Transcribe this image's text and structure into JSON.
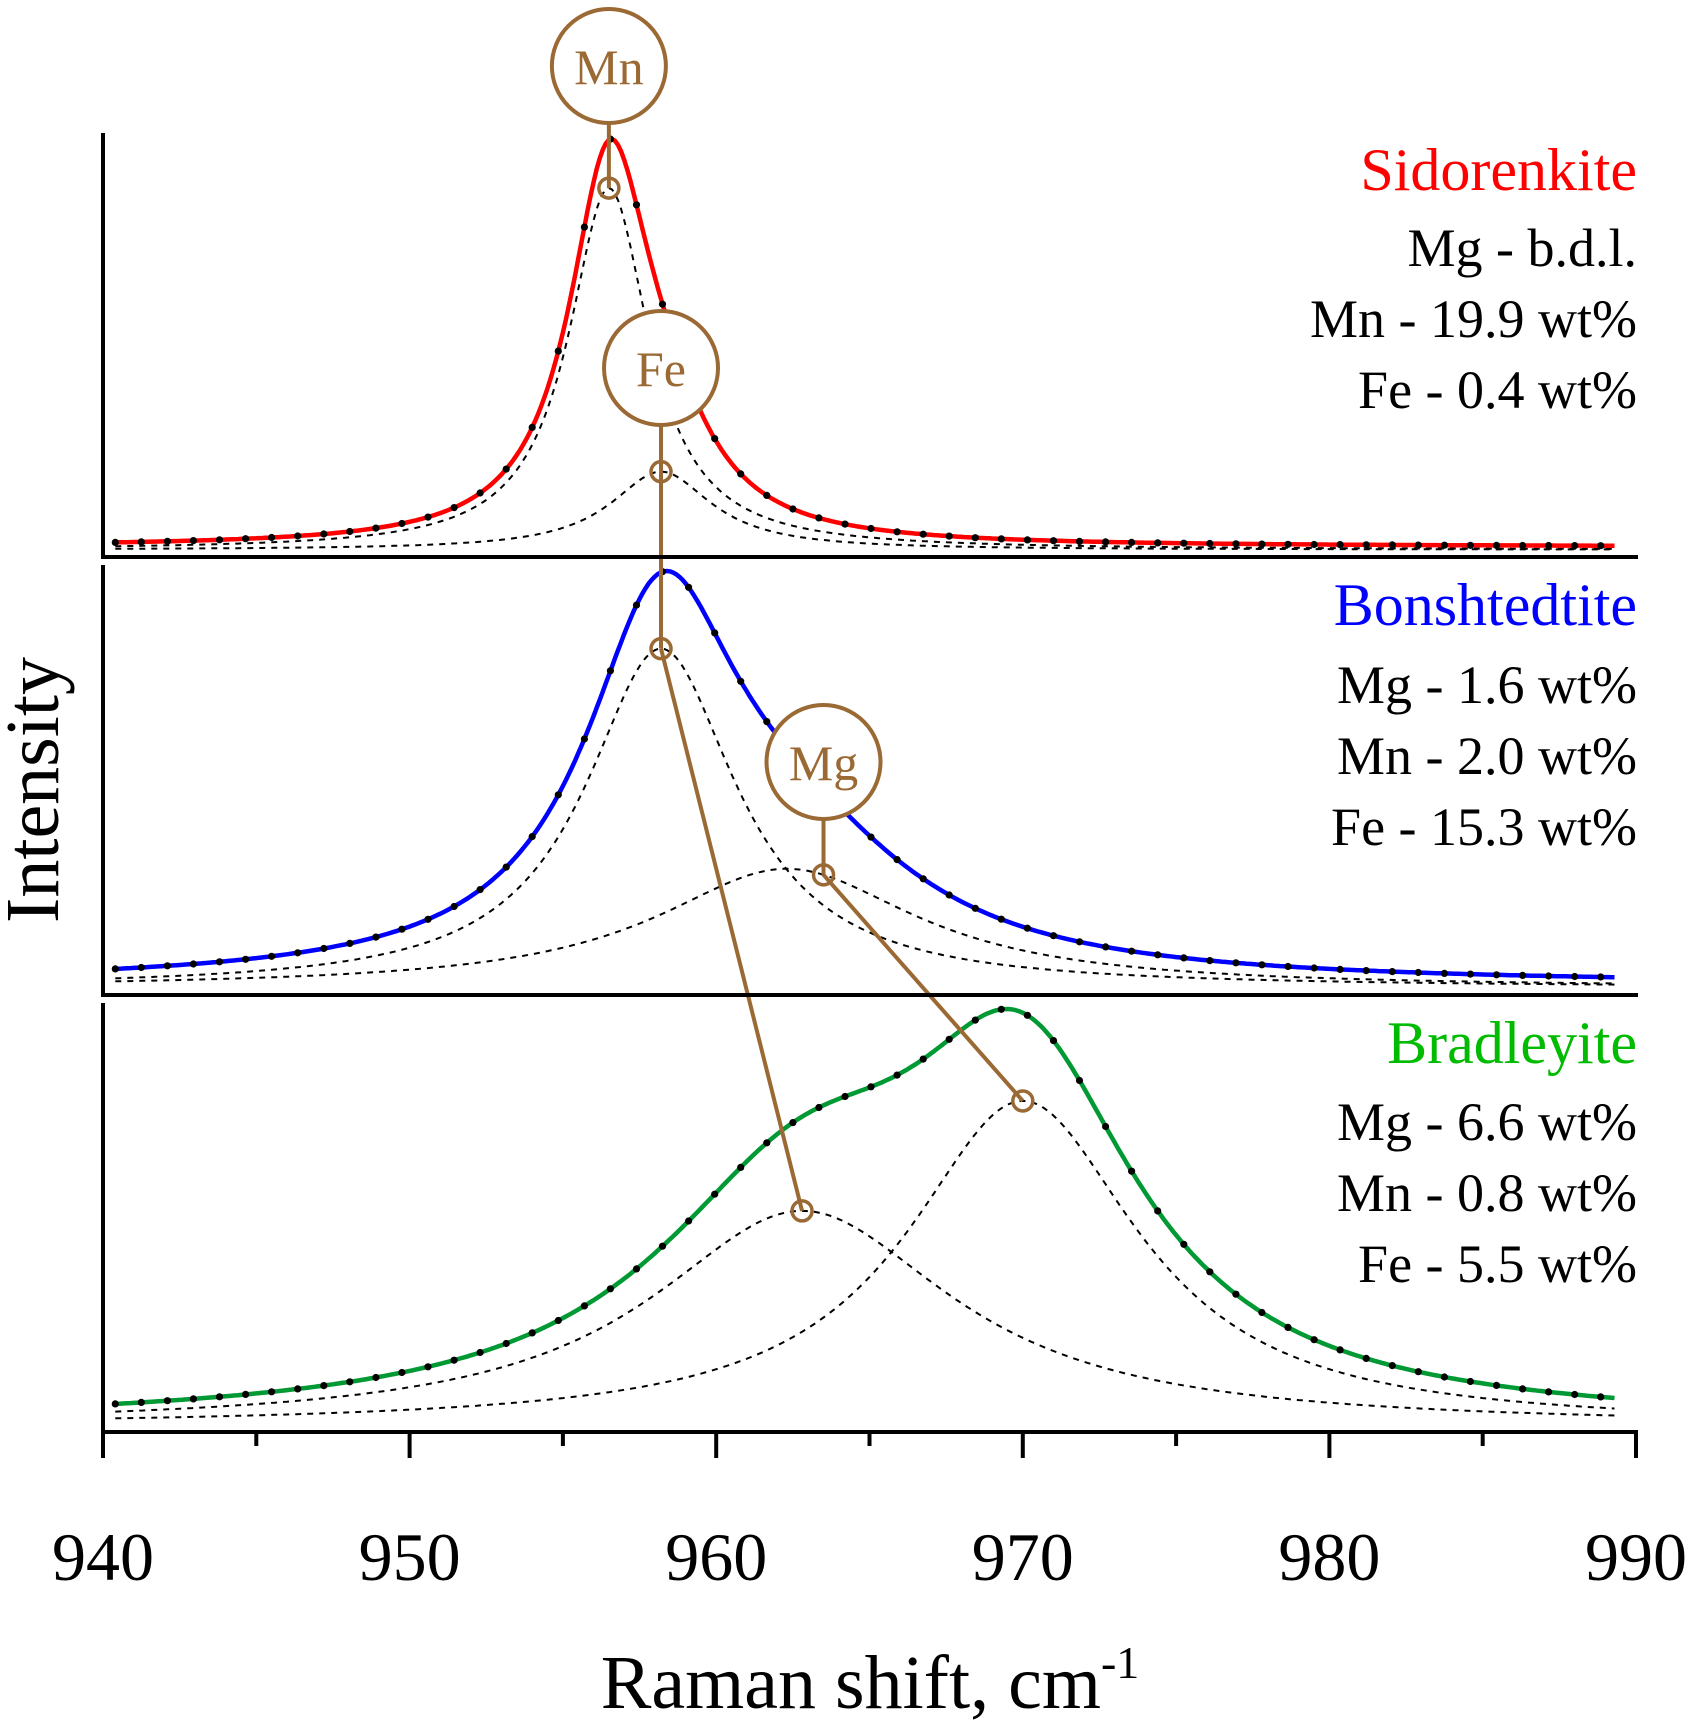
{
  "chart_data": {
    "type": "line",
    "title": "",
    "xlabel": "Raman shift, cm",
    "xlabel_superscript": "-1",
    "ylabel": "Intensity",
    "xlim": [
      940,
      990
    ],
    "x_ticks_major": [
      940,
      950,
      960,
      970,
      980,
      990
    ],
    "x_tick_labels": [
      "940",
      "950",
      "960",
      "970",
      "980",
      "990"
    ],
    "x_ticks_minor": [
      945,
      955,
      965,
      975,
      985
    ],
    "grid": false,
    "layout": "three stacked panels sharing x-axis",
    "marker_color": "#9a6934",
    "panels": [
      {
        "mineral": "Sidorenkite",
        "color": "#ff0000",
        "composition": [
          "Mg - b.d.l.",
          "Mn - 19.9 wt%",
          "Fe - 0.4 wt%"
        ],
        "fit_color": "#ff0000",
        "baseline": 0.01,
        "components": [
          {
            "label": "Mn",
            "center": 956.5,
            "amplitude": 0.88,
            "hwhm": 1.6
          },
          {
            "label": "Fe",
            "center": 958.2,
            "amplitude": 0.19,
            "hwhm": 2.0
          }
        ],
        "markers": [
          {
            "label": "Mn",
            "x": 956.5
          },
          {
            "label": "Fe",
            "x": 958.2
          }
        ]
      },
      {
        "mineral": "Bonshtedtite",
        "color": "#0000ff",
        "composition": [
          "Mg - 1.6 wt%",
          "Mn - 2.0 wt%",
          "Fe - 15.3 wt%"
        ],
        "fit_color": "#0000ff",
        "baseline": 0.01,
        "components": [
          {
            "label": "Fe",
            "center": 958.2,
            "amplitude": 0.77,
            "hwhm": 3.0
          },
          {
            "label": "Mg",
            "center": 962.3,
            "amplitude": 0.27,
            "hwhm": 5.2
          }
        ],
        "markers": [
          {
            "label": "Fe",
            "x": 958.2
          },
          {
            "label": "Mg",
            "x": 963.5
          }
        ]
      },
      {
        "mineral": "Bradleyite",
        "color": "#00bb00",
        "composition": [
          "Mg - 6.6 wt%",
          "Mn - 0.8 wt%",
          "Fe - 5.5 wt%"
        ],
        "fit_color": "#009933",
        "baseline": 0.0,
        "components": [
          {
            "label": "Fe",
            "center": 962.8,
            "amplitude": 0.45,
            "hwhm": 6.0
          },
          {
            "label": "Mg",
            "center": 970.0,
            "amplitude": 0.68,
            "hwhm": 4.6
          }
        ],
        "markers": [
          {
            "label": "Fe",
            "x": 962.8
          },
          {
            "label": "Mg",
            "x": 970.0
          }
        ]
      }
    ],
    "connections": [
      {
        "element": "Mn",
        "path": "Sidorenkite label above peak"
      },
      {
        "element": "Fe",
        "path": "Sidorenkite → Bonshtedtite → Bradleyite"
      },
      {
        "element": "Mg",
        "path": "Bonshtedtite → Bradleyite"
      }
    ]
  }
}
